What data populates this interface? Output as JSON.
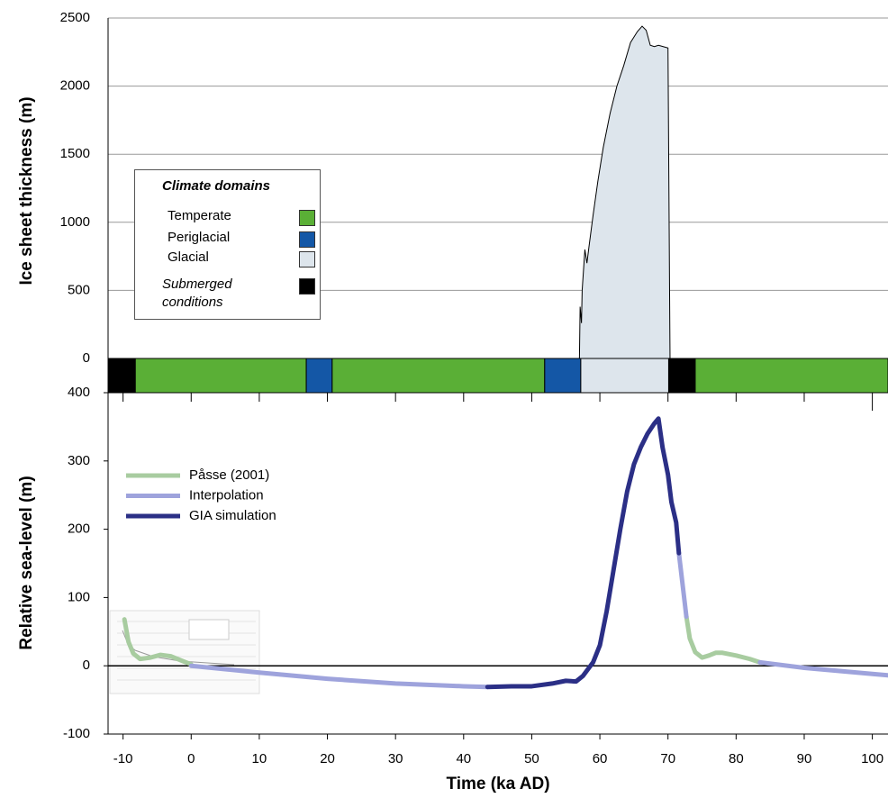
{
  "chart_data": [
    {
      "type": "area",
      "y_label": "Ice sheet thickness (m)",
      "legend_title": "Climate domains",
      "xlim": [
        -12.2,
        102.3
      ],
      "ylim": [
        0,
        2500
      ],
      "yticks": [
        0,
        500,
        1000,
        1500,
        2000,
        2500
      ],
      "grid": true,
      "color": "#dde5ec",
      "x": [
        57,
        57.1,
        57.3,
        57.4,
        57.8,
        58.1,
        58.4,
        59,
        59.7,
        60.5,
        61.5,
        62.5,
        63.5,
        64.5,
        65.5,
        66.2,
        66.8,
        67.4,
        68,
        68.6,
        69.3,
        70,
        70.3
      ],
      "values": [
        0,
        380,
        260,
        500,
        800,
        700,
        820,
        1050,
        1300,
        1550,
        1800,
        2000,
        2150,
        2320,
        2400,
        2440,
        2410,
        2300,
        2290,
        2300,
        2290,
        2280,
        0
      ],
      "domains": [
        {
          "name": "Temperate",
          "color": "#5aaf36"
        },
        {
          "name": "Periglacial",
          "color": "#1457a6"
        },
        {
          "name": "Glacial",
          "color": "#dde5ec"
        },
        {
          "name": "Submerged conditions",
          "color": "#000000"
        }
      ],
      "segments": [
        {
          "start": -12.2,
          "end": -8.2,
          "domain": "Submerged conditions"
        },
        {
          "start": -8.2,
          "end": 16.9,
          "domain": "Temperate"
        },
        {
          "start": 16.9,
          "end": 20.7,
          "domain": "Periglacial"
        },
        {
          "start": 20.7,
          "end": 51.9,
          "domain": "Temperate"
        },
        {
          "start": 51.9,
          "end": 57.2,
          "domain": "Periglacial"
        },
        {
          "start": 57.2,
          "end": 70.1,
          "domain": "Glacial"
        },
        {
          "start": 70.1,
          "end": 74,
          "domain": "Submerged conditions"
        },
        {
          "start": 74,
          "end": 102.3,
          "domain": "Temperate"
        }
      ]
    },
    {
      "type": "line",
      "x_label": "Time (ka AD)",
      "y_label": "Relative sea-level (m)",
      "xlim": [
        -12.2,
        102.3
      ],
      "ylim": [
        -100,
        400
      ],
      "xticks": [
        -10,
        0,
        10,
        20,
        30,
        40,
        50,
        60,
        70,
        80,
        90,
        100
      ],
      "yticks": [
        -100,
        0,
        100,
        200,
        300,
        400
      ],
      "series": [
        {
          "name": "Påsse (2001)",
          "color": "#a8cca0",
          "x": [
            -9.8,
            -9.2,
            -8.5,
            -7.5,
            -6,
            -4.5,
            -3,
            -1.5,
            0,
            null,
            72.7,
            73.2,
            74,
            75,
            76,
            77,
            78,
            80,
            82,
            83.5
          ],
          "values": [
            68,
            35,
            18,
            10,
            12,
            16,
            14,
            8,
            2,
            null,
            72,
            40,
            20,
            12,
            15,
            19,
            19,
            15,
            10,
            5
          ]
        },
        {
          "name": "Interpolation",
          "color": "#9ea3dc",
          "x": [
            0,
            10,
            20,
            30,
            40,
            43.5,
            null,
            71.6,
            72.7,
            null,
            83.5,
            90,
            100,
            102.3
          ],
          "values": [
            0,
            -10,
            -19,
            -26,
            -30,
            -31,
            null,
            165,
            72,
            null,
            5,
            -3,
            -12,
            -14
          ]
        },
        {
          "name": "GIA simulation",
          "color": "#2b2f86",
          "x": [
            43.5,
            47,
            50,
            53,
            55,
            56.5,
            57.5,
            59,
            60,
            61,
            62,
            63,
            64,
            65,
            66,
            67,
            68,
            68.6,
            69.2,
            70,
            70.5,
            71.2,
            71.6
          ],
          "values": [
            -31,
            -30,
            -30,
            -26,
            -22,
            -23,
            -15,
            5,
            30,
            80,
            140,
            200,
            255,
            295,
            320,
            340,
            355,
            362,
            320,
            280,
            240,
            210,
            165
          ]
        }
      ]
    }
  ]
}
